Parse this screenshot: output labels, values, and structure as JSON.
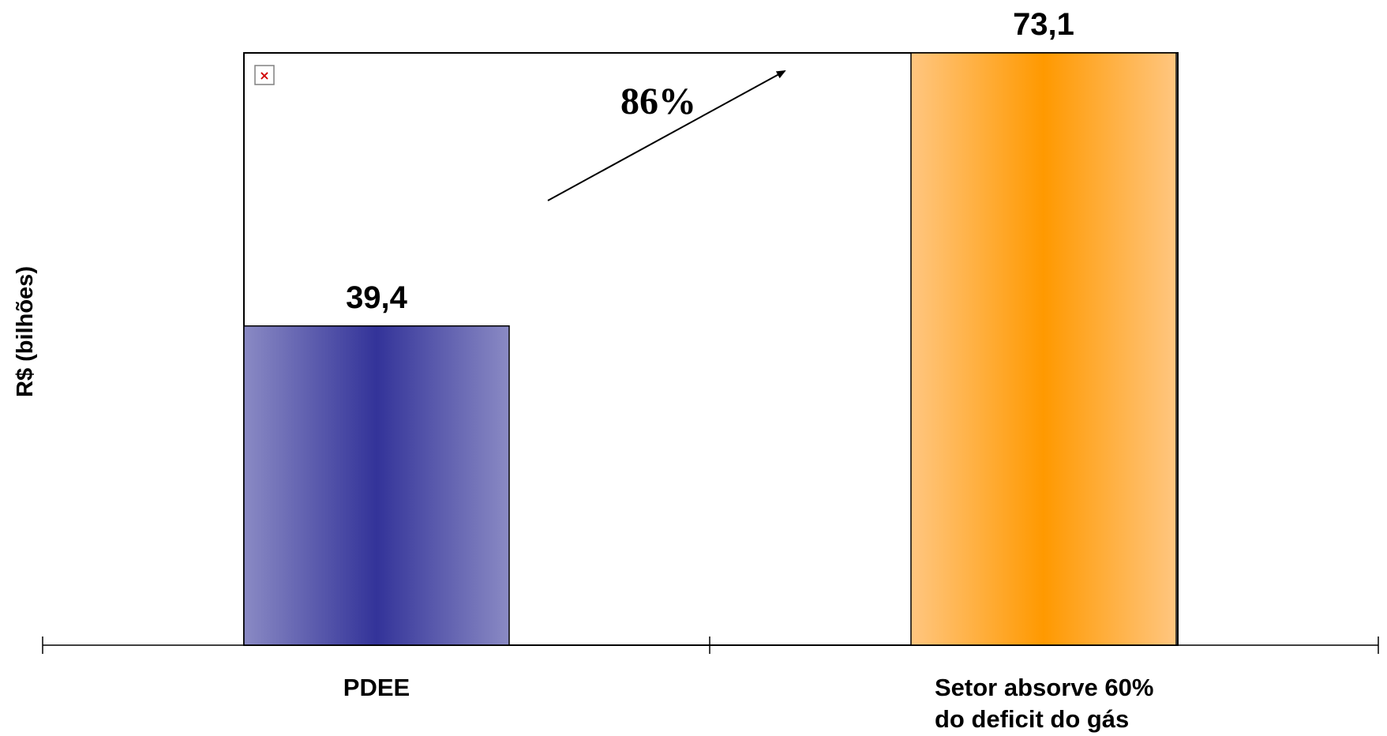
{
  "chart_data": {
    "type": "bar",
    "ylabel": "R$ (bilhões)",
    "categories": [
      "PDEE",
      "Setor absorve 60% do deficit do gás"
    ],
    "category_lines": [
      [
        "PDEE"
      ],
      [
        "Setor absorve 60%",
        "do deficit do gás"
      ]
    ],
    "values": [
      39.4,
      73.1
    ],
    "value_labels": [
      "39,4",
      "73,1"
    ],
    "ylim": [
      0,
      73.1
    ],
    "grid": false,
    "bar_colors": [
      {
        "edge": "#8a8ac4",
        "center": "#333399"
      },
      {
        "edge": "#ffc680",
        "center": "#ff9900"
      }
    ],
    "annotation": {
      "text": "86%",
      "from_category": 0,
      "to_category": 1
    }
  },
  "broken_image_icon": "broken-image-icon"
}
